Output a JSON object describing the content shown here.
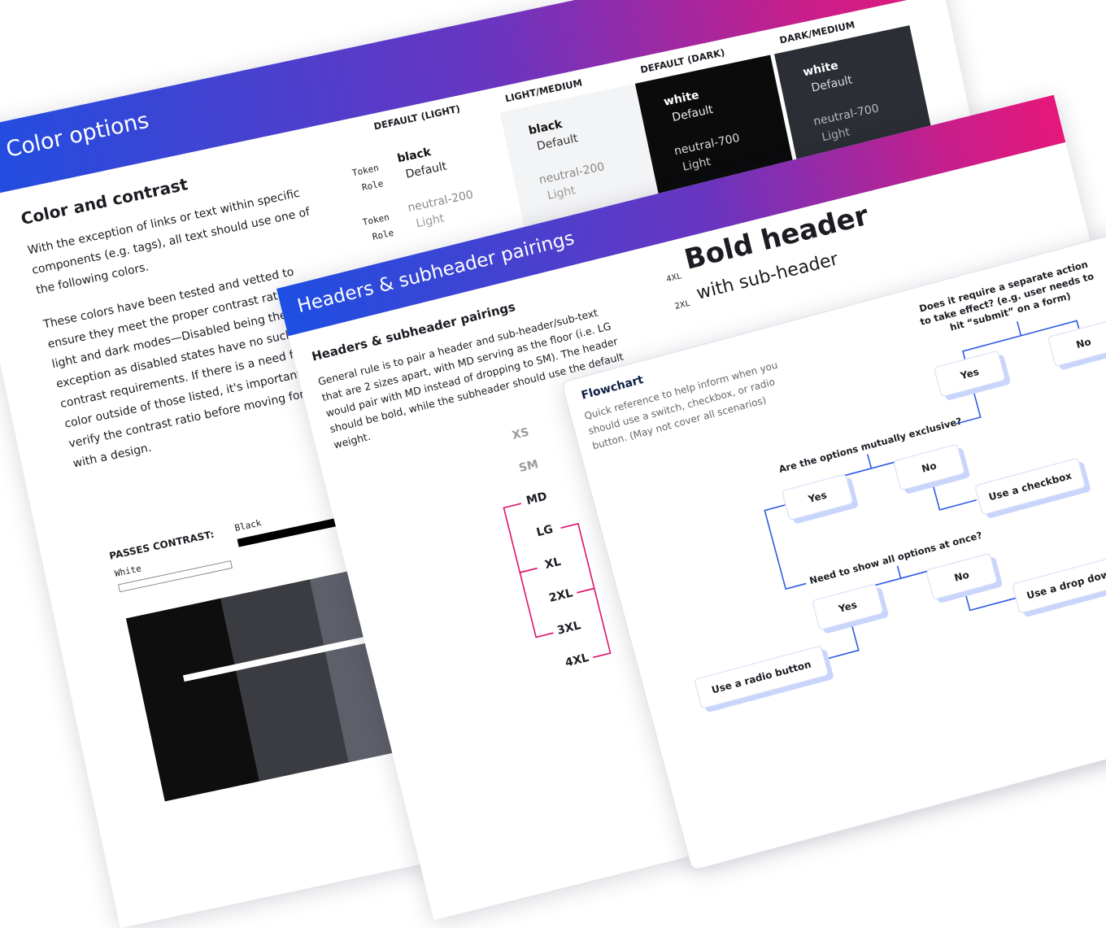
{
  "color_card": {
    "title": "Color options",
    "heading": "Color and contrast",
    "paragraphs": [
      "With the exception of links or text within specific components (e.g. tags), all text should use one of the following colors.",
      "These colors have been tested and vetted to ensure they meet the proper contrast ratios for light and dark modes—Disabled being the exception as disabled states have no such contrast requirements. If there is a need for a color outside of those listed, it's important to verify the contrast ratio before moving forward with a design."
    ],
    "row_labels": [
      "Token",
      "Role"
    ],
    "columns": [
      {
        "header": "DEFAULT (LIGHT)",
        "rows": [
          {
            "token": "black",
            "role": "Default"
          },
          {
            "token": "neutral-200",
            "role": "Light"
          }
        ]
      },
      {
        "header": "LIGHT/MEDIUM",
        "rows": [
          {
            "token": "black",
            "role": "Default"
          },
          {
            "token": "neutral-200",
            "role": "Light"
          }
        ]
      },
      {
        "header": "DEFAULT (DARK)",
        "rows": [
          {
            "token": "white",
            "role": "Default"
          },
          {
            "token": "neutral-700",
            "role": "Light"
          }
        ]
      },
      {
        "header": "DARK/MEDIUM",
        "rows": [
          {
            "token": "white",
            "role": "Default"
          },
          {
            "token": "neutral-700",
            "role": "Light"
          }
        ]
      }
    ],
    "passes_contrast": "PASSES CONTRAST:",
    "swatch_labels": [
      "White",
      "Black"
    ]
  },
  "headers_card": {
    "title": "Headers & subheader pairings",
    "heading": "Headers & subheader pairings",
    "body": "General rule is to pair a header and sub-header/sub-text that are 2 sizes apart, with MD serving as the floor (i.e. LG would pair with MD instead of dropping to SM). The header should be bold, while the subheader should use the default weight.",
    "sizes": [
      "XS",
      "SM",
      "MD",
      "LG",
      "XL",
      "2XL",
      "3XL",
      "4XL"
    ],
    "example": {
      "header_size": "4XL",
      "header": "Bold header",
      "subheader_size": "2XL",
      "subheader": "with sub-header"
    }
  },
  "flowchart": {
    "title": "Flowchart",
    "description": "Quick reference to help inform when you should use a switch, checkbox, or radio button. (May not cover all scenarios)",
    "questions": [
      "Does it require a separate action to take effect? (e.g. user needs to hit “submit” on a form)",
      "Are the options mutually exclusive?",
      "Need to show all options at once?"
    ],
    "answers": [
      "Yes",
      "No"
    ],
    "outcomes": [
      "Use a checkbox",
      "Use a drop down",
      "Use a radio button"
    ]
  }
}
